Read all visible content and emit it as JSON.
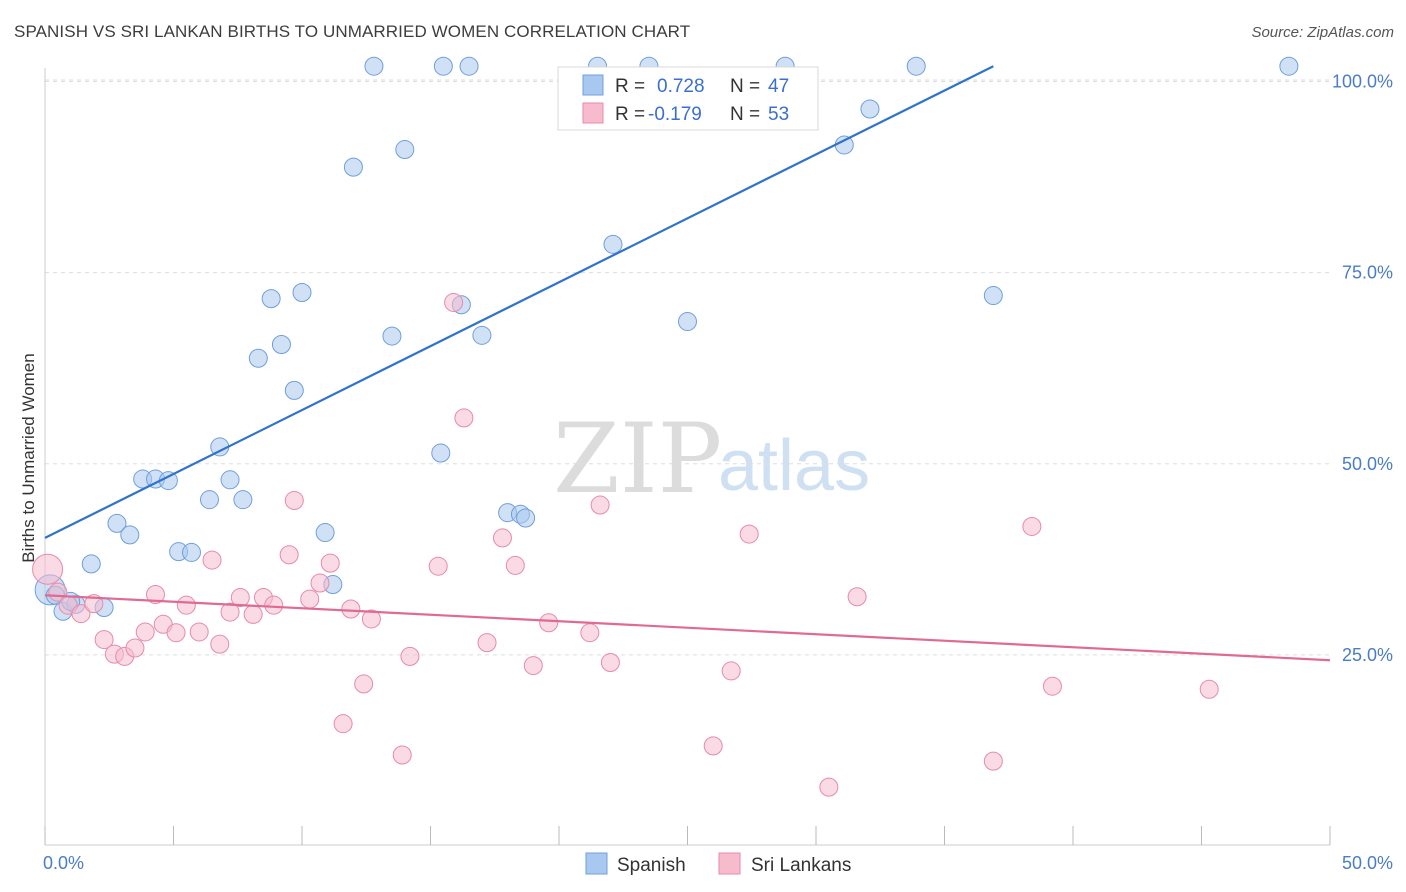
{
  "header": {
    "title": "SPANISH VS SRI LANKAN BIRTHS TO UNMARRIED WOMEN CORRELATION CHART",
    "source": "Source: ZipAtlas.com"
  },
  "colors": {
    "spanish_fill": "#a9c8ef",
    "spanish_stroke": "#6f9fdc",
    "spanish_line": "#2f73cc",
    "srilankan_fill": "#f6bccd",
    "srilankan_stroke": "#e78ba8",
    "srilankan_line": "#e06a93",
    "grid": "#dddddd",
    "tick_label": "#4a7cc8"
  },
  "watermark": {
    "zip": "ZIP",
    "atlas": "atlas"
  },
  "legend": {
    "rows": [
      {
        "r_label": "R =",
        "r_value": "0.728",
        "n_label": "N =",
        "n_value": "47"
      },
      {
        "r_label": "R =",
        "r_value": "-0.179",
        "n_label": "N =",
        "n_value": "53"
      }
    ]
  },
  "chart_data": {
    "type": "scatter",
    "title": "SPANISH VS SRI LANKAN BIRTHS TO UNMARRIED WOMEN CORRELATION CHART",
    "xlabel": "",
    "ylabel": "Births to Unmarried Women",
    "xlim": [
      0,
      50
    ],
    "ylim": [
      0,
      102
    ],
    "x_tick_labels": [
      "0.0%",
      "50.0%"
    ],
    "y_ticks": [
      {
        "value": 25,
        "label": "25.0%"
      },
      {
        "value": 50,
        "label": "50.0%"
      },
      {
        "value": 75,
        "label": "75.0%"
      },
      {
        "value": 100,
        "label": "100.0%"
      }
    ],
    "grid": true,
    "legend_position": "bottom-center",
    "series": [
      {
        "name": "Spanish",
        "trend": {
          "x": [
            0,
            36.9
          ],
          "y": [
            40.3,
            102
          ]
        },
        "points": [
          [
            0.2,
            33.5
          ],
          [
            0.7,
            30.7
          ],
          [
            1.2,
            31.6
          ],
          [
            1.8,
            36.9
          ],
          [
            2.8,
            42.2
          ],
          [
            3.3,
            40.7
          ],
          [
            3.8,
            48.0
          ],
          [
            4.3,
            48.0
          ],
          [
            4.8,
            47.8
          ],
          [
            5.2,
            38.5
          ],
          [
            5.7,
            38.4
          ],
          [
            6.4,
            45.3
          ],
          [
            6.8,
            52.2
          ],
          [
            7.2,
            47.9
          ],
          [
            7.7,
            45.3
          ],
          [
            8.3,
            63.8
          ],
          [
            8.8,
            71.6
          ],
          [
            9.2,
            65.6
          ],
          [
            9.7,
            59.6
          ],
          [
            10.0,
            72.4
          ],
          [
            10.9,
            41.0
          ],
          [
            11.2,
            34.2
          ],
          [
            12.0,
            88.8
          ],
          [
            12.8,
            102
          ],
          [
            13.5,
            66.7
          ],
          [
            14.0,
            91.1
          ],
          [
            15.5,
            102
          ],
          [
            15.4,
            51.4
          ],
          [
            16.5,
            102
          ],
          [
            16.2,
            70.8
          ],
          [
            17.0,
            66.8
          ],
          [
            18.0,
            43.6
          ],
          [
            18.5,
            43.4
          ],
          [
            18.7,
            42.9
          ],
          [
            21.5,
            102
          ],
          [
            22.1,
            78.7
          ],
          [
            23.5,
            102
          ],
          [
            25.0,
            68.6
          ],
          [
            28.8,
            102
          ],
          [
            31.1,
            91.7
          ],
          [
            32.1,
            96.4
          ],
          [
            33.9,
            102
          ],
          [
            36.9,
            72.0
          ],
          [
            48.4,
            102
          ],
          [
            0.4,
            32.8
          ],
          [
            1.0,
            32.0
          ],
          [
            2.3,
            31.2
          ]
        ]
      },
      {
        "name": "Sri Lankans",
        "trend": {
          "x": [
            0,
            50
          ],
          "y": [
            32.8,
            24.3
          ]
        },
        "points": [
          [
            0.1,
            36.2
          ],
          [
            0.5,
            33.2
          ],
          [
            0.9,
            31.5
          ],
          [
            1.4,
            30.4
          ],
          [
            1.9,
            31.7
          ],
          [
            2.3,
            27.0
          ],
          [
            2.7,
            25.1
          ],
          [
            3.1,
            24.8
          ],
          [
            3.5,
            25.9
          ],
          [
            3.9,
            28.0
          ],
          [
            4.3,
            32.9
          ],
          [
            4.6,
            29.0
          ],
          [
            5.1,
            27.9
          ],
          [
            5.5,
            31.5
          ],
          [
            6.0,
            28.0
          ],
          [
            6.5,
            37.4
          ],
          [
            6.8,
            26.4
          ],
          [
            7.2,
            30.6
          ],
          [
            7.6,
            32.5
          ],
          [
            8.1,
            30.3
          ],
          [
            8.5,
            32.5
          ],
          [
            8.9,
            31.5
          ],
          [
            9.5,
            38.1
          ],
          [
            9.7,
            45.2
          ],
          [
            10.3,
            32.3
          ],
          [
            10.7,
            34.4
          ],
          [
            11.1,
            37.0
          ],
          [
            11.9,
            31.0
          ],
          [
            11.6,
            16.0
          ],
          [
            12.4,
            21.2
          ],
          [
            12.7,
            29.7
          ],
          [
            13.9,
            11.9
          ],
          [
            14.2,
            24.8
          ],
          [
            15.3,
            36.6
          ],
          [
            15.9,
            71.1
          ],
          [
            16.3,
            56.0
          ],
          [
            17.2,
            26.6
          ],
          [
            17.8,
            40.3
          ],
          [
            18.3,
            36.7
          ],
          [
            19.0,
            23.6
          ],
          [
            19.6,
            29.2
          ],
          [
            21.2,
            27.9
          ],
          [
            21.6,
            44.6
          ],
          [
            22.0,
            24.0
          ],
          [
            26.0,
            13.1
          ],
          [
            26.7,
            22.9
          ],
          [
            27.4,
            40.8
          ],
          [
            30.5,
            7.7
          ],
          [
            31.6,
            32.6
          ],
          [
            36.9,
            11.1
          ],
          [
            38.4,
            41.8
          ],
          [
            39.2,
            20.9
          ],
          [
            45.3,
            20.5
          ]
        ]
      }
    ]
  }
}
